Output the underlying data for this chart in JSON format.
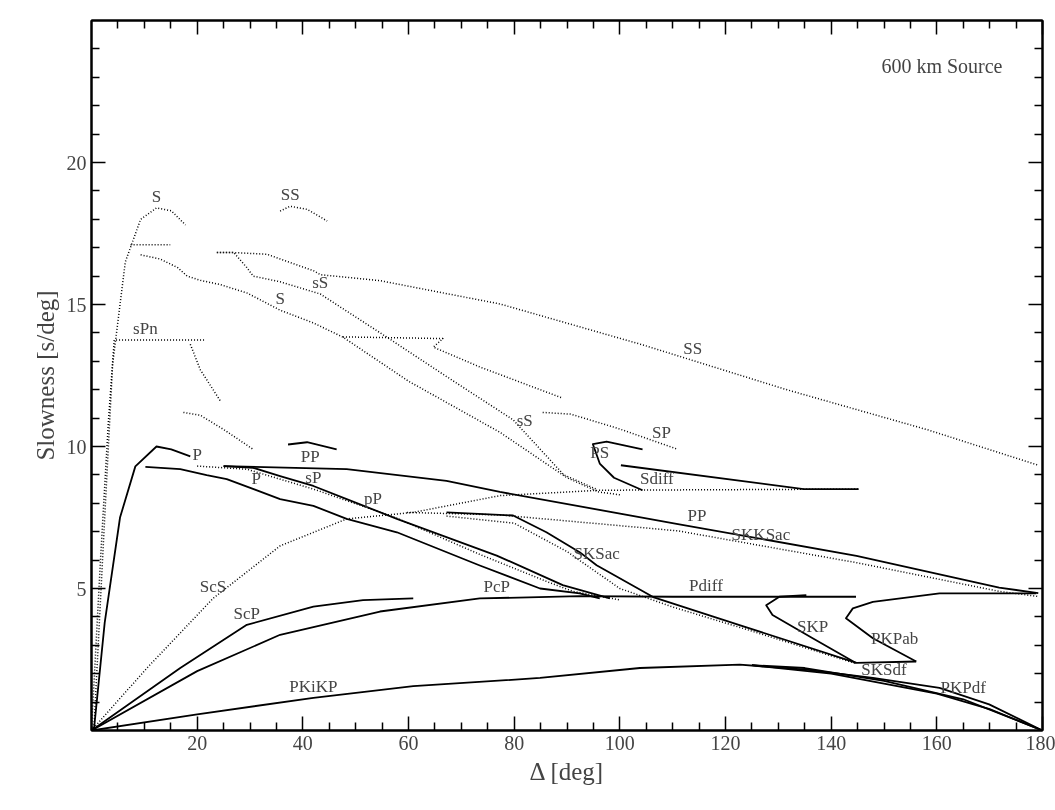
{
  "chart_data": {
    "type": "line",
    "xlabel": "Δ [deg]",
    "ylabel": "Slowness [s/deg]",
    "xlim": [
      0,
      180
    ],
    "ylim": [
      0,
      25
    ],
    "xticks": [
      {
        "value": 5,
        "label": null
      },
      {
        "value": 10,
        "label": null
      },
      {
        "value": 15,
        "label": null
      },
      20,
      {
        "value": 25,
        "label": null
      },
      {
        "value": 30,
        "label": null
      },
      {
        "value": 35,
        "label": null
      },
      40,
      {
        "value": 45,
        "label": null
      },
      {
        "value": 50,
        "label": null
      },
      {
        "value": 55,
        "label": null
      },
      60,
      {
        "value": 65,
        "label": null
      },
      {
        "value": 70,
        "label": null
      },
      {
        "value": 75,
        "label": null
      },
      80,
      {
        "value": 85,
        "label": null
      },
      {
        "value": 90,
        "label": null
      },
      {
        "value": 95,
        "label": null
      },
      100,
      {
        "value": 105,
        "label": null
      },
      {
        "value": 110,
        "label": null
      },
      {
        "value": 115,
        "label": null
      },
      120,
      {
        "value": 125,
        "label": null
      },
      {
        "value": 130,
        "label": null
      },
      {
        "value": 135,
        "label": null
      },
      140,
      {
        "value": 145,
        "label": null
      },
      {
        "value": 150,
        "label": null
      },
      {
        "value": 155,
        "label": null
      },
      160,
      {
        "value": 165,
        "label": null
      },
      {
        "value": 170,
        "label": null
      },
      {
        "value": 175,
        "label": null
      },
      180
    ],
    "yticks": [
      {
        "value": 1,
        "label": null
      },
      {
        "value": 2,
        "label": null
      },
      {
        "value": 3,
        "label": null
      },
      {
        "value": 4,
        "label": null
      },
      5,
      {
        "value": 6,
        "label": null
      },
      {
        "value": 7,
        "label": null
      },
      {
        "value": 8,
        "label": null
      },
      {
        "value": 9,
        "label": null
      },
      10,
      {
        "value": 11,
        "label": null
      },
      {
        "value": 12,
        "label": null
      },
      {
        "value": 13,
        "label": null
      },
      {
        "value": 14,
        "label": null
      },
      15,
      {
        "value": 16,
        "label": null
      },
      {
        "value": 17,
        "label": null
      },
      {
        "value": 18,
        "label": null
      },
      {
        "value": 19,
        "label": null
      },
      20,
      {
        "value": 21,
        "label": null
      },
      {
        "value": 22,
        "label": null
      },
      {
        "value": 23,
        "label": null
      },
      {
        "value": 24,
        "label": null
      }
    ],
    "grid": false,
    "series": [
      {
        "color": "#000000",
        "line_style": "dotted",
        "x": [
          0,
          0.5,
          2.5,
          4,
          6.4,
          9.3,
          12.3,
          15.1,
          17.8
        ],
        "values": [
          0,
          0.2,
          7.5,
          12.9,
          16.5,
          18.0,
          18.4,
          18.3,
          17.8
        ]
      },
      {
        "color": "#000000",
        "line_style": "solid",
        "x": [
          0,
          0.5,
          2.5,
          5.4,
          8.3,
          12.3,
          15.1,
          18.7
        ],
        "values": [
          0,
          0.1,
          3.8,
          7.5,
          9.3,
          10.0,
          9.9,
          9.65
        ]
      },
      {
        "color": "#000000",
        "line_style": "dotted",
        "x": [
          0,
          1.7,
          3.2,
          4.3,
          21.6
        ],
        "values": [
          0,
          6.0,
          10.9,
          13.75,
          13.75
        ]
      },
      {
        "color": "#000000",
        "line_style": "dotted",
        "x": [
          7.4,
          14.9
        ],
        "values": [
          17.1,
          17.1
        ]
      },
      {
        "color": "#000000",
        "line_style": "dotted",
        "x": [
          9.3,
          13.0,
          16.3,
          18.1,
          20.6,
          24.4,
          29.5,
          35.7,
          42.0,
          47.6,
          60,
          77.3,
          90,
          96,
          100
        ],
        "values": [
          16.75,
          16.6,
          16.3,
          16.0,
          15.85,
          15.7,
          15.4,
          14.8,
          14.35,
          13.85,
          12.3,
          10.5,
          8.9,
          8.4,
          8.3
        ]
      },
      {
        "color": "#000000",
        "line_style": "dotted",
        "x": [
          23.7,
          26.9,
          29.4,
          30.6,
          35.7,
          43.3,
          55.9,
          67.3,
          79.8,
          89.4,
          95.5
        ],
        "values": [
          16.83,
          16.83,
          16.3,
          16.0,
          15.8,
          15.37,
          13.85,
          12.45,
          10.94,
          9.0,
          8.5
        ]
      },
      {
        "color": "#000000",
        "line_style": "dotted",
        "x": [
          23.8,
          26.8,
          33.2,
          42,
          43.3,
          54.6,
          67.3,
          77.3,
          104.3,
          131.4,
          158.4,
          179.2
        ],
        "values": [
          16.83,
          16.83,
          16.77,
          16.19,
          16.05,
          15.84,
          15.38,
          15.02,
          13.58,
          12.01,
          10.58,
          9.34
        ]
      },
      {
        "color": "#000000",
        "line_style": "dotted",
        "x": [
          35.7,
          37.6,
          40.8,
          44.6
        ],
        "values": [
          18.29,
          18.46,
          18.35,
          17.94
        ]
      },
      {
        "color": "#000000",
        "line_style": "dotted",
        "x": [
          18.7,
          20.6,
          24.4
        ],
        "values": [
          13.6,
          12.7,
          11.6
        ]
      },
      {
        "color": "#000000",
        "line_style": "dotted",
        "x": [
          17.4,
          20.6,
          25,
          30.6
        ],
        "values": [
          11.2,
          11.1,
          10.6,
          9.9
        ]
      },
      {
        "color": "#000000",
        "line_style": "dotted",
        "x": [
          47.6,
          66.5,
          64.7,
          73.5,
          89.2
        ],
        "values": [
          13.86,
          13.8,
          13.5,
          12.8,
          11.7
        ]
      },
      {
        "color": "#000000",
        "line_style": "dotted",
        "x": [
          85.4,
          90.7,
          99.6,
          111
        ],
        "values": [
          11.2,
          11.14,
          10.64,
          9.9
        ]
      },
      {
        "color": "#000000",
        "line_style": "solid",
        "x": [
          104.3,
          97.5,
          94.9,
          96.2,
          98.9,
          104.3
        ],
        "values": [
          9.9,
          10.17,
          10.08,
          9.4,
          8.9,
          8.46
        ]
      },
      {
        "color": "#000000",
        "line_style": "solid",
        "x": [
          100.2,
          134.8,
          145.2
        ],
        "values": [
          9.34,
          8.5,
          8.5
        ]
      },
      {
        "color": "#000000",
        "line_style": "dotted",
        "x": [
          0,
          10.5,
          23,
          35.7,
          48.3,
          60.9,
          77.3,
          96.2,
          145.2
        ],
        "values": [
          0,
          2.2,
          4.65,
          6.5,
          7.45,
          7.68,
          8.27,
          8.46,
          8.5
        ]
      },
      {
        "color": "#000000",
        "line_style": "solid",
        "x": [
          10.2,
          16.8,
          21.8,
          25.6,
          35.7,
          42,
          48.3,
          57.8,
          73.5,
          84.9,
          92.4,
          96.2
        ],
        "values": [
          9.28,
          9.2,
          8.99,
          8.85,
          8.15,
          7.91,
          7.45,
          6.98,
          5.81,
          5.0,
          4.83,
          4.65
        ]
      },
      {
        "color": "#000000",
        "line_style": "dotted",
        "x": [
          20,
          29.4,
          42,
          57.5,
          73.5,
          86.1,
          91.1,
          100
        ],
        "values": [
          9.31,
          9.2,
          8.5,
          7.5,
          6.2,
          5.25,
          4.9,
          4.6
        ]
      },
      {
        "color": "#000000",
        "line_style": "solid",
        "x": [
          25,
          30.6,
          35.7,
          42,
          48.3,
          57.8,
          76.7,
          89.2,
          98.1
        ],
        "values": [
          9.31,
          9.25,
          8.96,
          8.61,
          8.15,
          7.45,
          6.16,
          5.12,
          4.65
        ]
      },
      {
        "color": "#000000",
        "line_style": "solid",
        "x": [
          25,
          48.3,
          67.2,
          77.3,
          111,
          144.8,
          171.8,
          179.2
        ],
        "values": [
          9.31,
          9.2,
          8.79,
          8.4,
          7.27,
          6.15,
          5.03,
          4.84
        ]
      },
      {
        "color": "#000000",
        "line_style": "solid",
        "x": [
          37.2,
          40.8,
          46.4
        ],
        "values": [
          10.07,
          10.15,
          9.9
        ]
      },
      {
        "color": "#000000",
        "line_style": "dotted",
        "x": [
          59.7,
          77.3,
          111,
          144.8,
          171.8,
          179.2
        ],
        "values": [
          7.68,
          7.59,
          7.03,
          5.91,
          4.9,
          4.72
        ]
      },
      {
        "color": "#000000",
        "line_style": "solid",
        "x": [
          67.2,
          79.8,
          86.1,
          92.4,
          95.6,
          106.3,
          122.8,
          144.8,
          156.1
        ],
        "values": [
          7.68,
          7.57,
          6.98,
          6.28,
          5.82,
          4.7,
          3.7,
          2.38,
          2.43
        ]
      },
      {
        "color": "#000000",
        "line_style": "dotted",
        "x": [
          67.2,
          80,
          90,
          100,
          110,
          125,
          144.8
        ],
        "values": [
          7.55,
          7.3,
          6.3,
          5.0,
          4.35,
          3.5,
          2.35
        ]
      },
      {
        "color": "#000000",
        "line_style": "solid",
        "x": [
          0,
          16.8,
          29.4,
          42,
          51.4,
          60.9
        ],
        "values": [
          0,
          2.2,
          3.72,
          4.36,
          4.59,
          4.65
        ]
      },
      {
        "color": "#000000",
        "line_style": "solid",
        "x": [
          0,
          20,
          35.7,
          54.6,
          73.5,
          92.4,
          110,
          144.7
        ],
        "values": [
          0,
          2.09,
          3.37,
          4.19,
          4.65,
          4.73,
          4.71,
          4.71
        ]
      },
      {
        "color": "#000000",
        "line_style": "solid",
        "x": [
          144.7,
          136.5,
          128.9,
          127.7,
          130.2,
          135.3
        ],
        "values": [
          2.38,
          3.25,
          4.07,
          4.41,
          4.71,
          4.77
        ]
      },
      {
        "color": "#000000",
        "line_style": "solid",
        "x": [
          156.1,
          147.9,
          142.8,
          144.1,
          147.9,
          160.5,
          178.8
        ],
        "values": [
          2.43,
          3.25,
          3.95,
          4.3,
          4.53,
          4.83,
          4.83
        ]
      },
      {
        "color": "#000000",
        "line_style": "solid",
        "x": [
          0,
          20,
          42,
          60.9,
          84.9,
          103.8,
          122.7,
          135.3,
          147.9,
          160.5,
          169.9,
          180
        ],
        "values": [
          0,
          0.57,
          1.15,
          1.56,
          1.85,
          2.2,
          2.32,
          2.14,
          1.85,
          1.5,
          0.92,
          0
        ]
      },
      {
        "color": "#000000",
        "line_style": "solid",
        "x": [
          125,
          140,
          160,
          170,
          180
        ],
        "values": [
          2.3,
          2.0,
          1.3,
          0.75,
          0
        ]
      },
      {
        "color": "#000000",
        "line_style": "solid",
        "x": [
          125,
          135,
          150,
          165,
          180
        ],
        "values": [
          2.3,
          2.2,
          1.75,
          1.1,
          0
        ]
      }
    ],
    "annotations": [
      "600 km Source",
      {
        "text": "S",
        "x": 12.3,
        "y": 18.4
      },
      {
        "text": "SS",
        "x": 37.6,
        "y": 18.46
      },
      {
        "text": "S",
        "x": 35.7,
        "y": 14.8
      },
      {
        "text": "sS",
        "x": 43.3,
        "y": 15.37
      },
      {
        "text": "sPn",
        "x": 10.2,
        "y": 13.75
      },
      {
        "text": "SS",
        "x": 113.8,
        "y": 13.03
      },
      {
        "text": "sS",
        "x": 82,
        "y": 10.5
      },
      {
        "text": "SP",
        "x": 107.9,
        "y": 10.09
      },
      {
        "text": "P",
        "x": 20,
        "y": 9.31
      },
      {
        "text": "PP",
        "x": 41.4,
        "y": 9.23
      },
      {
        "text": "PS",
        "x": 96.2,
        "y": 9.4
      },
      {
        "text": "Sdiff",
        "x": 107,
        "y": 8.47
      },
      {
        "text": "P",
        "x": 31.2,
        "y": 8.46
      },
      {
        "text": "sP",
        "x": 42,
        "y": 8.5
      },
      {
        "text": "pP",
        "x": 53.3,
        "y": 7.78
      },
      {
        "text": "PP",
        "x": 114.6,
        "y": 7.15
      },
      {
        "text": "SKKSac",
        "x": 126.7,
        "y": 6.51
      },
      {
        "text": "SKSac",
        "x": 95.6,
        "y": 5.82
      },
      {
        "text": "ScS",
        "x": 23,
        "y": 4.65
      },
      {
        "text": "PcP",
        "x": 76.7,
        "y": 4.66
      },
      {
        "text": "Pdiff",
        "x": 116.3,
        "y": 4.71
      },
      {
        "text": "ScP",
        "x": 29.4,
        "y": 3.72
      },
      {
        "text": "SKP",
        "x": 136.5,
        "y": 3.25
      },
      {
        "text": "PKPab",
        "x": 152,
        "y": 2.84
      },
      {
        "text": "PKiKP",
        "x": 42,
        "y": 1.15
      },
      {
        "text": "SKSdf",
        "x": 150,
        "y": 1.75
      },
      {
        "text": "PKPdf",
        "x": 165,
        "y": 1.1
      }
    ]
  }
}
